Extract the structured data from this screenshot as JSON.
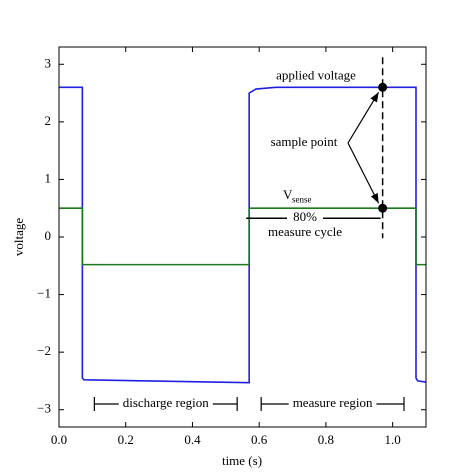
{
  "chart_data": {
    "type": "line",
    "xlabel": "time (s)",
    "ylabel": "voltage",
    "xlim": [
      0,
      1.1
    ],
    "ylim": [
      -3.3,
      3.3
    ],
    "xticks": [
      {
        "value": 0,
        "label": "0.0"
      },
      0.2,
      0.4,
      0.6,
      0.8,
      {
        "value": 1,
        "label": "1.0"
      }
    ],
    "yticks": [
      {
        "value": -3,
        "label": "−3"
      },
      {
        "value": -2,
        "label": "−2"
      },
      {
        "value": -1,
        "label": "−1"
      },
      0,
      1,
      2,
      3
    ],
    "x": [
      0,
      0.07,
      0.07,
      0.075,
      0.57,
      0.57,
      0.59,
      0.65,
      1.07,
      1.07,
      1.075,
      1.1
    ],
    "series": [
      {
        "name": "applied voltage",
        "color": "#2020e0",
        "values": [
          2.6,
          2.6,
          -2.45,
          -2.48,
          -2.53,
          2.5,
          2.57,
          2.6,
          2.6,
          -2.45,
          -2.5,
          -2.52
        ]
      },
      {
        "name": "V",
        "name_subscript": "sense",
        "color": "#1a7a1a",
        "values": [
          0.5,
          0.5,
          -0.48,
          -0.48,
          -0.48,
          0.5,
          0.5,
          0.5,
          0.5,
          -0.48,
          -0.48,
          -0.48
        ]
      }
    ],
    "sample_points": {
      "label": "sample point",
      "x": [
        0.97,
        0.97
      ],
      "y": [
        2.6,
        0.5
      ]
    },
    "cycle_label": {
      "percent": "80%",
      "text": "measure cycle"
    },
    "regions": [
      "discharge region",
      "measure region"
    ]
  }
}
